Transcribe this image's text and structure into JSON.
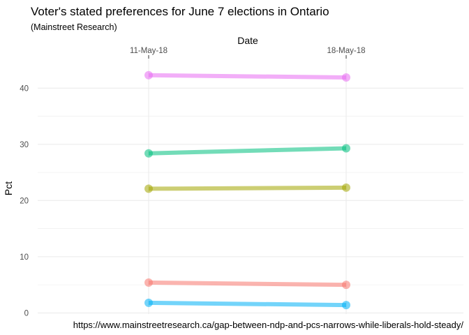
{
  "chart_data": {
    "type": "line",
    "title": "Voter's stated preferences for June 7 elections in Ontario",
    "subtitle": "(Mainstreet Research)",
    "xlabel": "Date",
    "ylabel": "Pct",
    "x": [
      "11-May-18",
      "18-May-18"
    ],
    "ylim": [
      -0.2,
      45.5
    ],
    "yticks": [
      0,
      10,
      20,
      30,
      40
    ],
    "grid": true,
    "legend": "none",
    "series": [
      {
        "color": "#E76BF3",
        "values": [
          42.3,
          41.9
        ]
      },
      {
        "color": "#00BF7D",
        "values": [
          28.4,
          29.3
        ]
      },
      {
        "color": "#A3A500",
        "values": [
          22.1,
          22.3
        ]
      },
      {
        "color": "#F8766D",
        "values": [
          5.4,
          5.0
        ]
      },
      {
        "color": "#00B0F6",
        "values": [
          1.8,
          1.4
        ]
      }
    ],
    "caption": "https://www.mainstreetresearch.ca/gap-between-ndp-and-pcs-narrows-while-liberals-hold-steady/"
  }
}
